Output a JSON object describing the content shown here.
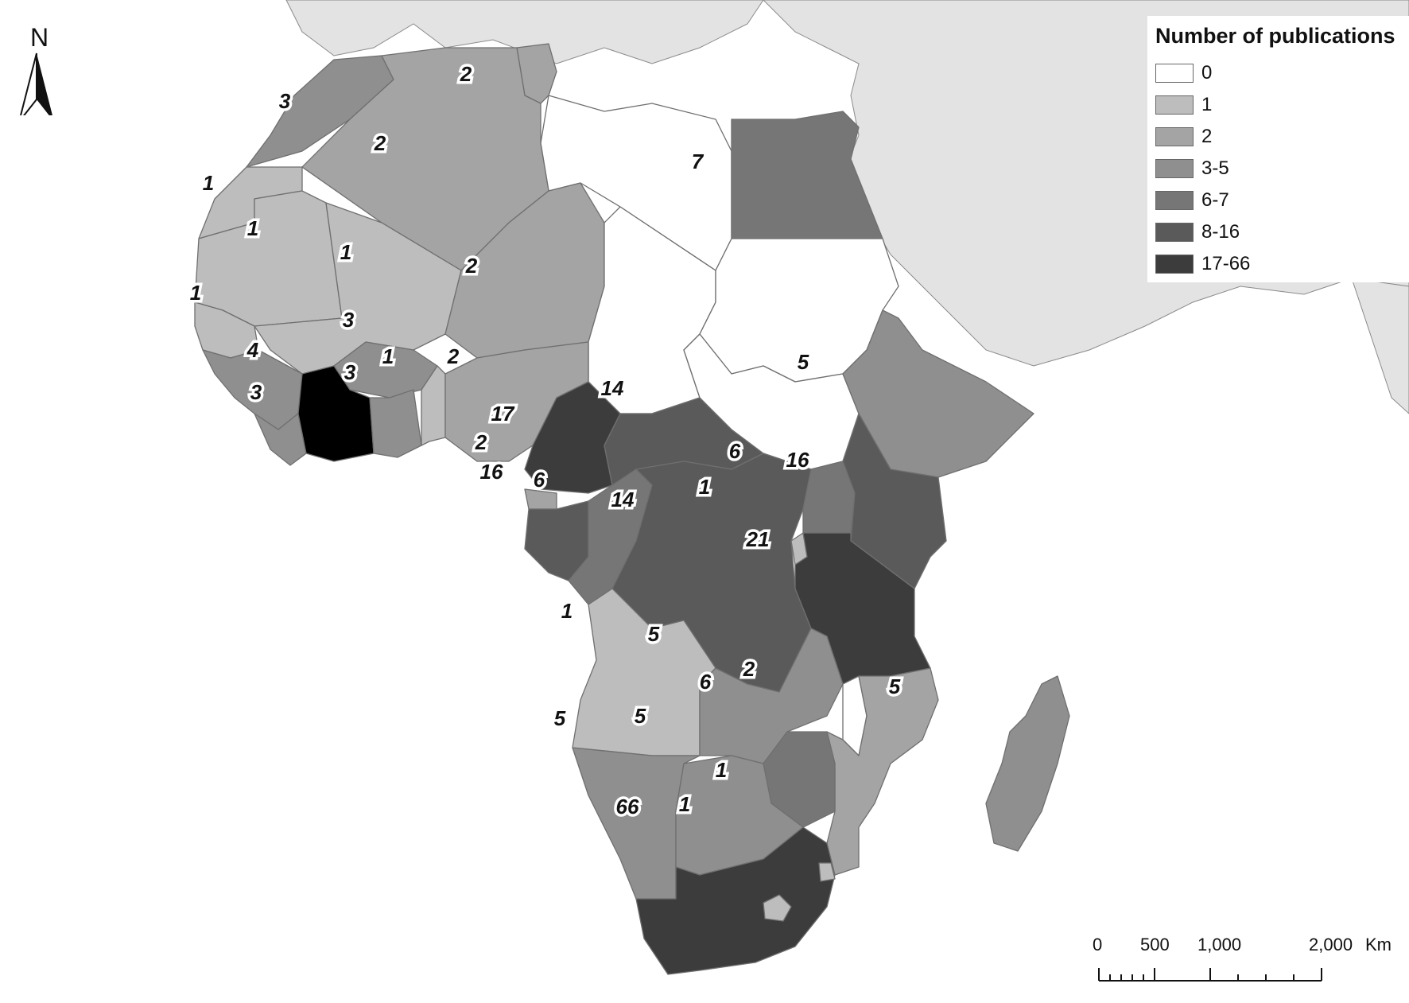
{
  "legend": {
    "title": "Number of publications",
    "items": [
      {
        "label": "0",
        "color": "#ffffff"
      },
      {
        "label": "1",
        "color": "#bdbdbd"
      },
      {
        "label": "2",
        "color": "#a4a4a4"
      },
      {
        "label": "3-5",
        "color": "#8f8f8f"
      },
      {
        "label": "6-7",
        "color": "#767676"
      },
      {
        "label": "8-16",
        "color": "#5a5a5a"
      },
      {
        "label": "17-66",
        "color": "#3c3c3c"
      }
    ]
  },
  "north_arrow": {
    "label": "N"
  },
  "scale_bar": {
    "labels": [
      "0",
      "500",
      "1,000",
      "2,000"
    ],
    "unit": "Km"
  },
  "countries": [
    {
      "name": "Morocco",
      "value": 3,
      "label": "3"
    },
    {
      "name": "Tunisia",
      "value": 2,
      "label": "2"
    },
    {
      "name": "Algeria",
      "value": 2,
      "label": "2"
    },
    {
      "name": "Libya",
      "value": 0,
      "label": ""
    },
    {
      "name": "Egypt",
      "value": 7,
      "label": "7"
    },
    {
      "name": "Western Sahara",
      "value": 1,
      "label": "1"
    },
    {
      "name": "Mauritania",
      "value": 1,
      "label": "1"
    },
    {
      "name": "Mali",
      "value": 1,
      "label": "1"
    },
    {
      "name": "Niger",
      "value": 2,
      "label": "2"
    },
    {
      "name": "Chad",
      "value": 0,
      "label": ""
    },
    {
      "name": "Sudan",
      "value": 0,
      "label": ""
    },
    {
      "name": "Senegal",
      "value": 1,
      "label": "1"
    },
    {
      "name": "Burkina Faso",
      "value": 3,
      "label": "3"
    },
    {
      "name": "Guinea",
      "value": 4,
      "label": "4"
    },
    {
      "name": "Liberia",
      "value": 3,
      "label": "3"
    },
    {
      "name": "Côte d'Ivoire",
      "value": 1,
      "label": "1"
    },
    {
      "name": "Ghana",
      "value": 3,
      "label": "3"
    },
    {
      "name": "Benin",
      "value": 1,
      "label": "1"
    },
    {
      "name": "Nigeria",
      "value": 2,
      "label": "2"
    },
    {
      "name": "Cameroon",
      "value": 17,
      "label": "17"
    },
    {
      "name": "Central African Republic",
      "value": 14,
      "label": "14"
    },
    {
      "name": "South Sudan",
      "value": 0,
      "label": ""
    },
    {
      "name": "Ethiopia",
      "value": 5,
      "label": "5"
    },
    {
      "name": "Equatorial Guinea",
      "value": 2,
      "label": "2"
    },
    {
      "name": "Gabon",
      "value": 16,
      "label": "16"
    },
    {
      "name": "Republic of the Congo",
      "value": 6,
      "label": "6"
    },
    {
      "name": "DR Congo",
      "value": 14,
      "label": "14"
    },
    {
      "name": "Uganda",
      "value": 6,
      "label": "6"
    },
    {
      "name": "Kenya",
      "value": 16,
      "label": "16"
    },
    {
      "name": "Rwanda",
      "value": 1,
      "label": "1"
    },
    {
      "name": "Tanzania",
      "value": 21,
      "label": "21"
    },
    {
      "name": "Angola",
      "value": 1,
      "label": "1"
    },
    {
      "name": "Zambia",
      "value": 5,
      "label": "5"
    },
    {
      "name": "Malawi",
      "value": 0,
      "label": ""
    },
    {
      "name": "Mozambique",
      "value": 2,
      "label": "2"
    },
    {
      "name": "Zimbabwe",
      "value": 6,
      "label": "6"
    },
    {
      "name": "Namibia",
      "value": 5,
      "label": "5"
    },
    {
      "name": "Botswana",
      "value": 5,
      "label": "5"
    },
    {
      "name": "South Africa",
      "value": 66,
      "label": "66"
    },
    {
      "name": "Eswatini",
      "value": 1,
      "label": "1"
    },
    {
      "name": "Lesotho",
      "value": 1,
      "label": "1"
    },
    {
      "name": "Madagascar",
      "value": 5,
      "label": "5"
    }
  ]
}
